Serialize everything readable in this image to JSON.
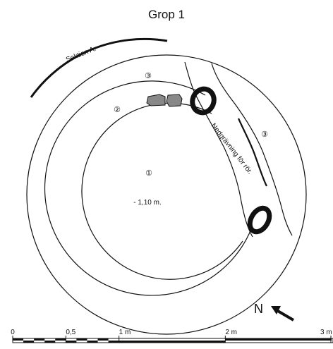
{
  "title": "Grop 1",
  "section_label": "Sektion A.",
  "trench_label": "Nedgrävning för rör.",
  "layers": [
    {
      "id": "layer-1",
      "label": "①"
    },
    {
      "id": "layer-2",
      "label": "②"
    },
    {
      "id": "layer-3-left",
      "label": "③"
    },
    {
      "id": "layer-3-right",
      "label": "③"
    }
  ],
  "depth_label": "- 1,10 m.",
  "north_label": "N",
  "scale_bar": {
    "ticks": [
      {
        "label": "0",
        "value_m": 0
      },
      {
        "label": "0,5",
        "value_m": 0.5
      },
      {
        "label": "1 m",
        "value_m": 1
      },
      {
        "label": "2 m",
        "value_m": 2
      },
      {
        "label": "3 m",
        "value_m": 3
      }
    ],
    "fine_segments_to_m": 1,
    "fine_segment_count": 10,
    "coarse_segments": 2
  },
  "colors": {
    "ink": "#111111",
    "stone_fill": "#888888",
    "background": "#ffffff"
  },
  "icons": {
    "north_arrow": "north-arrow-icon",
    "pipe": "pipe-ring-icon",
    "stone": "stone-shape"
  }
}
